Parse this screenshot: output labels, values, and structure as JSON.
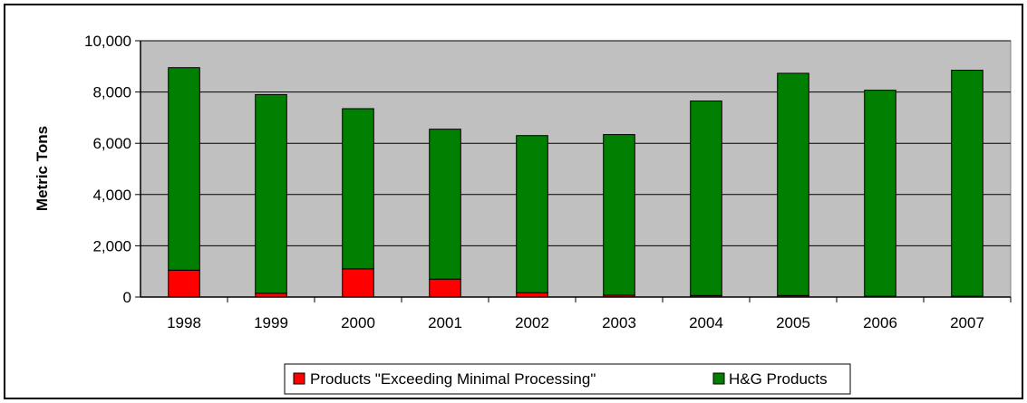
{
  "chart_data": {
    "type": "bar",
    "stacked": true,
    "title": "",
    "xlabel": "",
    "ylabel": "Metric Tons",
    "ylim": [
      0,
      10000
    ],
    "yticks": [
      0,
      2000,
      4000,
      6000,
      8000,
      10000
    ],
    "ytick_labels": [
      "0",
      "2,000",
      "4,000",
      "6,000",
      "8,000",
      "10,000"
    ],
    "grid": true,
    "legend_position": "bottom",
    "plot_background": "#c0c0c0",
    "categories": [
      "1998",
      "1999",
      "2000",
      "2001",
      "2002",
      "2003",
      "2004",
      "2005",
      "2006",
      "2007"
    ],
    "series": [
      {
        "name": "Products \"Exceeding Minimal Processing\"",
        "color": "#ff0000",
        "values": [
          1050,
          150,
          1100,
          700,
          170,
          70,
          60,
          60,
          30,
          30
        ]
      },
      {
        "name": "H&G Products",
        "color": "#007f00",
        "values": [
          7900,
          7750,
          6250,
          5850,
          6130,
          6270,
          7590,
          8670,
          8040,
          8820
        ]
      }
    ]
  }
}
